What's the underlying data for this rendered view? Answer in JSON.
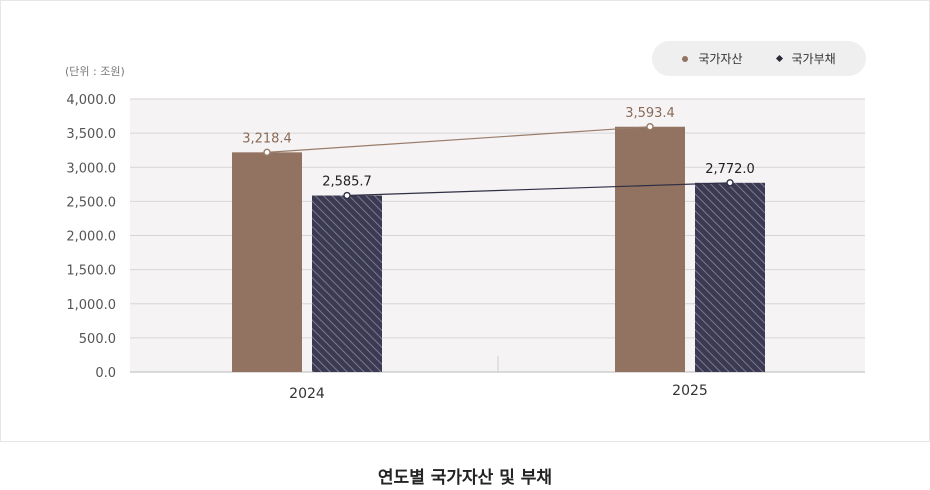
{
  "chart_data": {
    "type": "bar",
    "title": "연도별 국가자산 및 부채",
    "unit_label": "(단위 : 조원)",
    "categories": [
      "2024",
      "2025"
    ],
    "series": [
      {
        "name": "국가자산",
        "values": [
          3218.4,
          3593.4
        ],
        "labels": [
          "3,218.4",
          "3,593.4"
        ],
        "color": "#927260",
        "marker": "dot"
      },
      {
        "name": "국가부채",
        "values": [
          2585.7,
          2772.0
        ],
        "labels": [
          "2,585.7",
          "2,772.0"
        ],
        "color": "#3b3a52",
        "marker": "diamond"
      }
    ],
    "ylim": [
      0,
      4000
    ],
    "yticks": [
      0,
      500,
      1000,
      1500,
      2000,
      2500,
      3000,
      3500,
      4000
    ],
    "ytick_labels": [
      "0.0",
      "500.0",
      "1,000.0",
      "1,500.0",
      "2,000.0",
      "2,500.0",
      "3,000.0",
      "3,500.0",
      "4,000.0"
    ],
    "grid": true,
    "legend": "top-right",
    "trend_lines": true
  }
}
